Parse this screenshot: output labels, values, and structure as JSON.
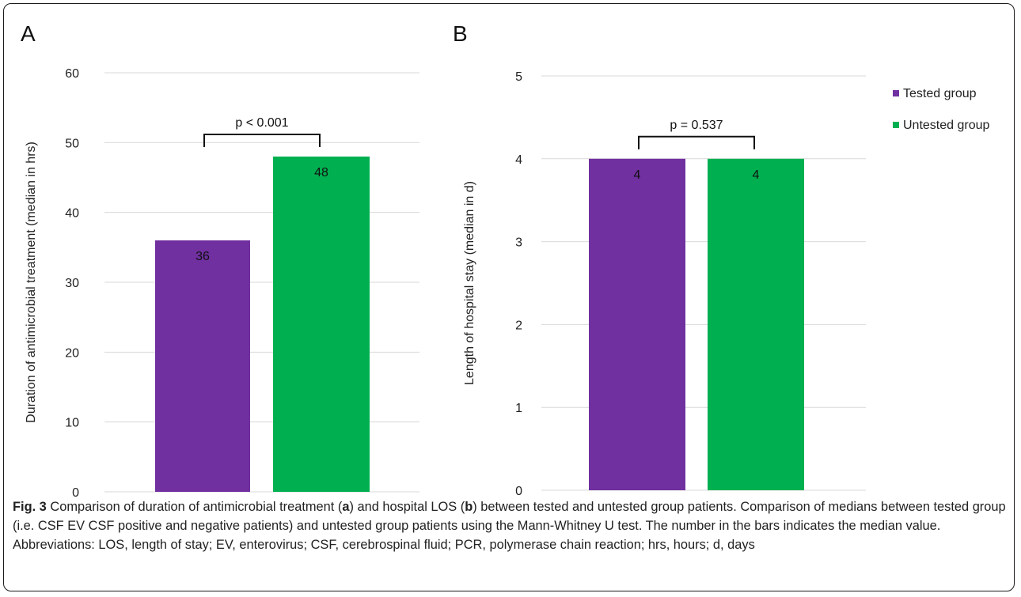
{
  "chart_data": [
    {
      "panel": "A",
      "type": "bar",
      "categories": [
        "Tested group",
        "Untested group"
      ],
      "values": [
        36,
        48
      ],
      "data_labels": [
        "36",
        "48"
      ],
      "colors": [
        "#7030A0",
        "#00B050"
      ],
      "ylabel": "Duration of antimicrobial treatment (median in hrs)",
      "xlabel": "",
      "ylim": [
        0,
        60
      ],
      "yticks": [
        "0",
        "10",
        "20",
        "30",
        "40",
        "50",
        "60"
      ],
      "grid": true,
      "annotation": "p < 0.001"
    },
    {
      "panel": "B",
      "type": "bar",
      "categories": [
        "Tested group",
        "Untested group"
      ],
      "values": [
        4,
        4
      ],
      "data_labels": [
        "4",
        "4"
      ],
      "colors": [
        "#7030A0",
        "#00B050"
      ],
      "ylabel": "Length of hospital stay (median in d)",
      "xlabel": "",
      "ylim": [
        0,
        5
      ],
      "yticks": [
        "0",
        "1",
        "2",
        "3",
        "4",
        "5"
      ],
      "grid": true,
      "annotation": "p = 0.537"
    }
  ],
  "legend": {
    "placement": "top-right",
    "items": [
      {
        "label": "Tested group",
        "color": "#7030A0"
      },
      {
        "label": "Untested group",
        "color": "#00B050"
      }
    ]
  },
  "caption": {
    "fig_label": "Fig. 3",
    "t1": " Comparison of duration of antimicrobial treatment (",
    "a": "a",
    "t2": ") and hospital LOS (",
    "b": "b",
    "t3": ") between tested and untested group patients. Comparison of medians between tested group (i.e. CSF EV CSF positive and negative patients) and untested group patients using the Mann-Whitney U test. The number in the bars indicates the median value. Abbreviations: LOS, length of stay; EV, enterovirus; CSF, cerebrospinal fluid; PCR, polymerase chain reaction; hrs, hours; d, days"
  }
}
